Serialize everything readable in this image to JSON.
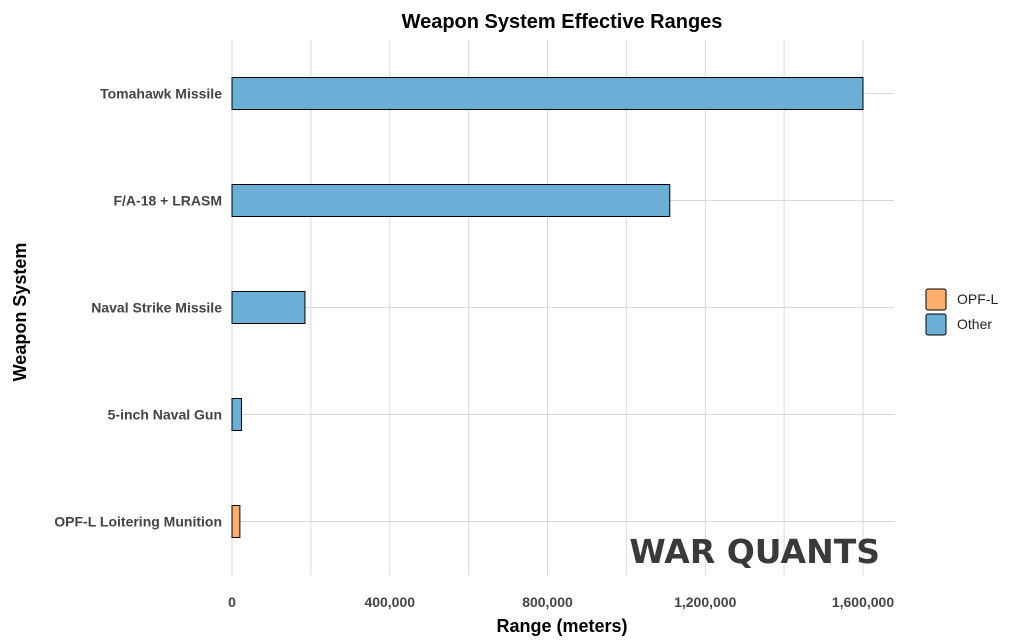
{
  "chart_data": {
    "type": "bar",
    "orientation": "horizontal",
    "title": "Weapon System Effective Ranges",
    "xlabel": "Range (meters)",
    "ylabel": "Weapon System",
    "categories": [
      "Tomahawk Missile",
      "F/A-18 + LRASM",
      "Naval Strike Missile",
      "5-inch Naval Gun",
      "OPF-L Loitering Munition"
    ],
    "values": [
      1600000,
      1110000,
      185000,
      24000,
      20000
    ],
    "groups": [
      "Other",
      "Other",
      "Other",
      "Other",
      "OPF-L"
    ],
    "xlim": [
      0,
      1680000
    ],
    "xticks": [
      0,
      400000,
      800000,
      1200000,
      1600000
    ],
    "xtick_labels": [
      "0",
      "400,000",
      "800,000",
      "1,200,000",
      "1,600,000"
    ],
    "grid": true,
    "legend": {
      "placement": "right",
      "entries": [
        {
          "label": "OPF-L",
          "color": "#FDAE6B"
        },
        {
          "label": "Other",
          "color": "#6BAED6"
        }
      ]
    }
  },
  "watermark": "WAR QUANTS",
  "colors": {
    "OPF-L": "#FDAE6B",
    "Other": "#6BAED6",
    "bar_outline": "#000000"
  }
}
